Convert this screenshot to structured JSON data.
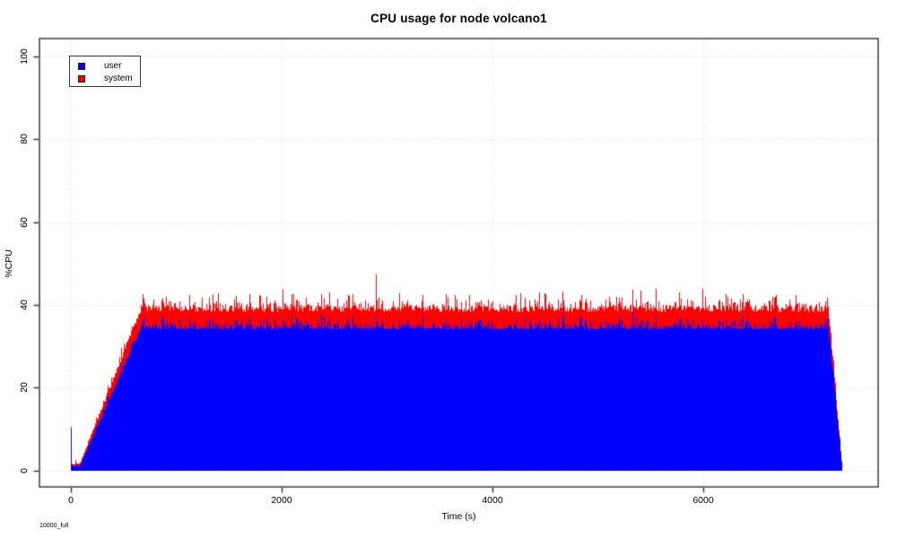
{
  "chart_data": {
    "type": "area",
    "stacked": true,
    "title": "CPU usage for node volcano1",
    "xlabel": "Time (s)",
    "ylabel": "%CPU",
    "corner_note": "10000_full",
    "xlim": [
      0,
      7660
    ],
    "ylim": [
      0,
      104
    ],
    "xticks": [
      0,
      2000,
      4000,
      6000
    ],
    "yticks": [
      0,
      20,
      40,
      60,
      80,
      100
    ],
    "grid_style": "dotted",
    "grid_on": true,
    "background": "#ffffff",
    "frame_color": "#3b3b3b",
    "grid_color": "#d6d6d6",
    "legend": {
      "position": "top-left",
      "entries": [
        {
          "label": "user",
          "color": "#0000ff"
        },
        {
          "label": "system",
          "color": "#ff0000"
        }
      ]
    },
    "series": [
      {
        "name": "user",
        "color": "#0000ff",
        "keypoints": [
          [
            0,
            10
          ],
          [
            9,
            0.8
          ],
          [
            40,
            1.0
          ],
          [
            85,
            1.1
          ],
          [
            665,
            34.2
          ],
          [
            7185,
            34.2
          ],
          [
            7318,
            0
          ]
        ],
        "noise_amp": 1.4,
        "spike_prob": 0.16,
        "spike_amp": 1.6
      },
      {
        "name": "system",
        "color": "#ff0000",
        "keypoints": [
          [
            0,
            0.3
          ],
          [
            40,
            0.4
          ],
          [
            85,
            0.6
          ],
          [
            665,
            4.3
          ],
          [
            7185,
            4.3
          ],
          [
            7318,
            0
          ]
        ],
        "noise_amp": 1.3,
        "spike_prob": 0.05,
        "spike_amp": 1.8
      }
    ],
    "spike_period_s": 220,
    "summary": {
      "user_plateau_pct": 35,
      "system_band_pct": 4.5,
      "total_plateau_pct": 39.5,
      "peak_spike_pct": 42.5,
      "initial_spike_pct": 10,
      "ramp_start_s": 85,
      "plateau_start_s": 665,
      "fall_start_s": 7185,
      "end_s": 7318
    }
  }
}
